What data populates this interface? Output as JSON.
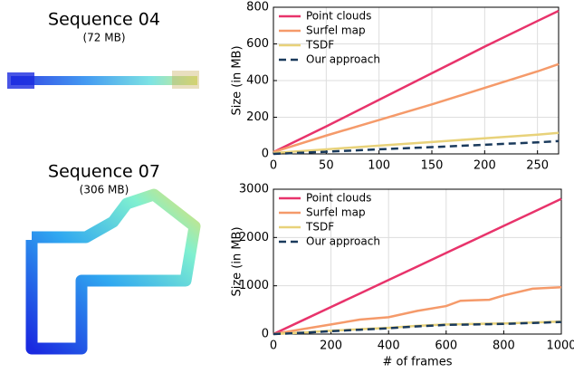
{
  "panels": [
    {
      "title": "Sequence 04",
      "subtitle": "(72 MB)"
    },
    {
      "title": "Sequence 07",
      "subtitle": "(306 MB)"
    }
  ],
  "chart_data": [
    {
      "type": "line",
      "ylabel": "Size (in MB)",
      "x": [
        0,
        50,
        100,
        150,
        200,
        250,
        270
      ],
      "xlim": [
        0,
        270
      ],
      "xticks": [
        0,
        50,
        100,
        150,
        200,
        250
      ],
      "ylim": [
        0,
        800
      ],
      "yticks": [
        0,
        200,
        400,
        600,
        800
      ],
      "grid": true,
      "legend": "upper-left",
      "series": [
        {
          "name": "Point clouds",
          "color": "#e8336b",
          "values": [
            10,
            150,
            295,
            440,
            585,
            725,
            780
          ]
        },
        {
          "name": "Surfel map",
          "color": "#f59a6a",
          "values": [
            10,
            100,
            185,
            270,
            360,
            450,
            490
          ]
        },
        {
          "name": "TSDF",
          "color": "#e8d27a",
          "values": [
            5,
            25,
            45,
            65,
            85,
            105,
            115
          ]
        },
        {
          "name": "Our approach",
          "color": "#1a3a5c",
          "dashed": true,
          "values": [
            0,
            12,
            25,
            37,
            50,
            63,
            70
          ]
        }
      ]
    },
    {
      "type": "line",
      "xlabel": "# of frames",
      "ylabel": "Size (in MB)",
      "x": [
        0,
        100,
        200,
        300,
        400,
        500,
        600,
        650,
        700,
        750,
        800,
        900,
        1000
      ],
      "xlim": [
        0,
        1000
      ],
      "xticks": [
        0,
        200,
        400,
        600,
        800,
        1000
      ],
      "ylim": [
        0,
        3000
      ],
      "yticks": [
        0,
        1000,
        2000,
        3000
      ],
      "grid": true,
      "legend": "upper-left",
      "series": [
        {
          "name": "Point clouds",
          "color": "#e8336b",
          "values": [
            0,
            280,
            560,
            840,
            1120,
            1400,
            1680,
            1820,
            1960,
            2100,
            2240,
            2520,
            2800
          ]
        },
        {
          "name": "Surfel map",
          "color": "#f59a6a",
          "values": [
            0,
            100,
            200,
            300,
            350,
            480,
            580,
            690,
            700,
            710,
            800,
            940,
            970
          ]
        },
        {
          "name": "TSDF",
          "color": "#e8d27a",
          "values": [
            0,
            30,
            70,
            100,
            130,
            170,
            200,
            205,
            210,
            215,
            220,
            240,
            260
          ]
        },
        {
          "name": "Our approach",
          "color": "#1a3a5c",
          "dashed": true,
          "values": [
            0,
            25,
            60,
            90,
            120,
            160,
            190,
            195,
            200,
            205,
            210,
            230,
            250
          ]
        }
      ]
    }
  ]
}
